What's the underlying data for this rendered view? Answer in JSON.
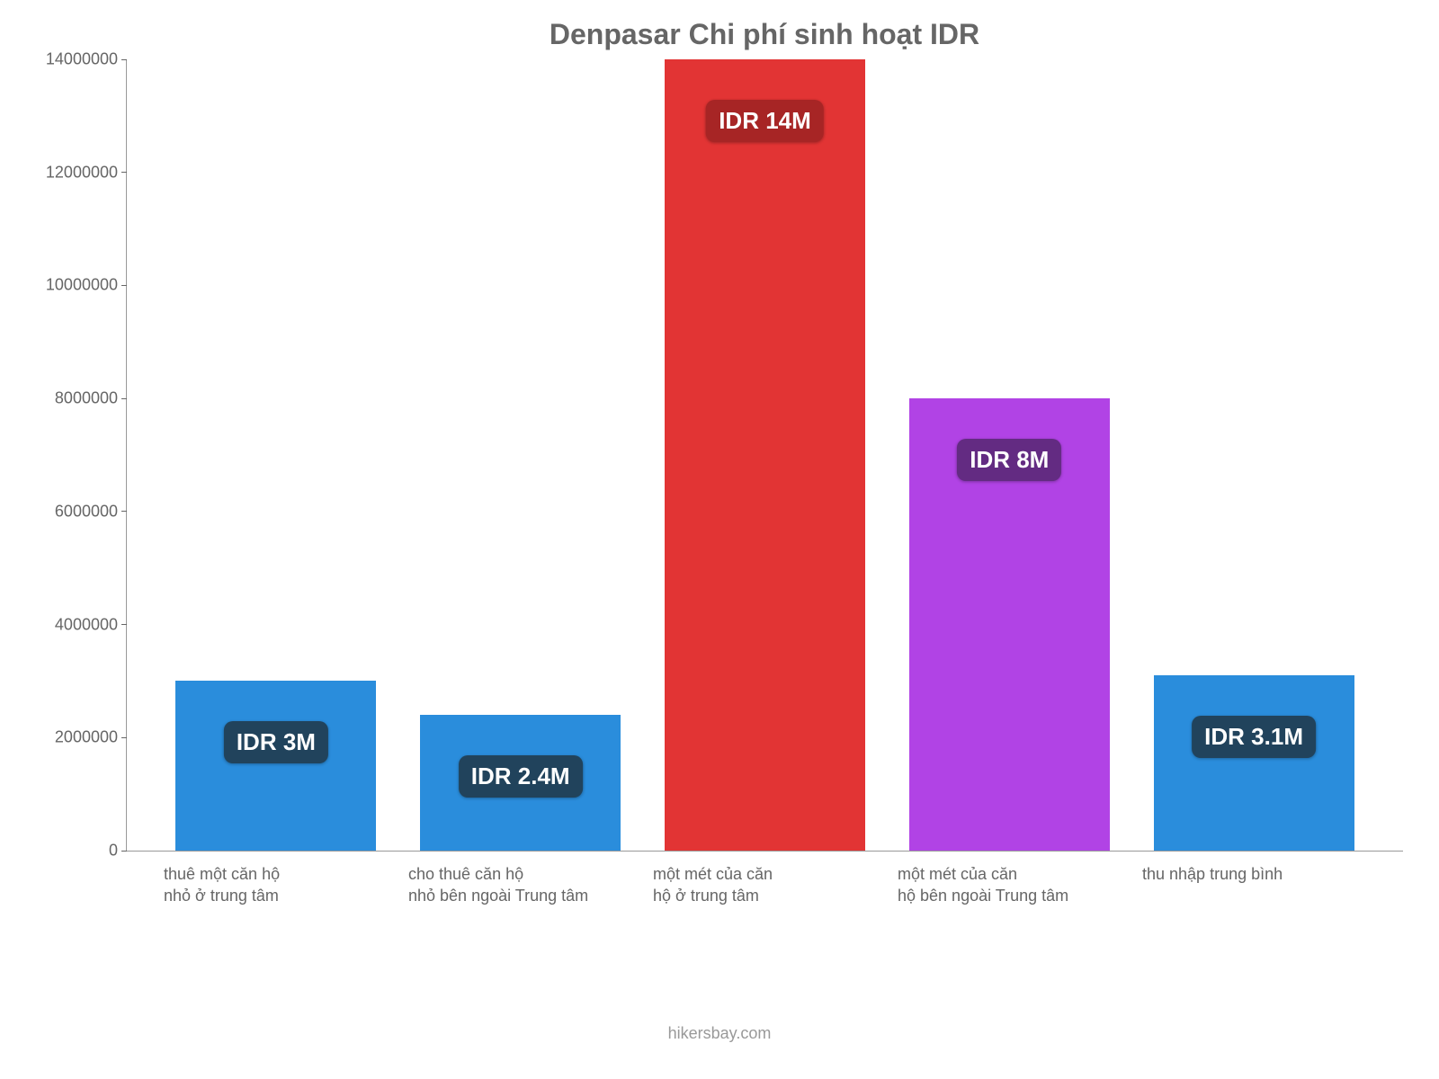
{
  "chart": {
    "type": "bar",
    "title": "Denpasar Chi phí sinh hoạt IDR",
    "title_fontsize": 32,
    "title_color": "#666666",
    "background_color": "#ffffff",
    "axis_color": "#999999",
    "label_color": "#666666",
    "label_fontsize": 18,
    "ylim": [
      0,
      14000000
    ],
    "ytick_step": 2000000,
    "yticks": [
      {
        "value": 0,
        "label": "0"
      },
      {
        "value": 2000000,
        "label": "2000000"
      },
      {
        "value": 4000000,
        "label": "4000000"
      },
      {
        "value": 6000000,
        "label": "6000000"
      },
      {
        "value": 8000000,
        "label": "8000000"
      },
      {
        "value": 10000000,
        "label": "10000000"
      },
      {
        "value": 12000000,
        "label": "12000000"
      },
      {
        "value": 14000000,
        "label": "14000000"
      }
    ],
    "bar_width": 0.82,
    "badge_fontsize": 26,
    "badge_text_color": "#ffffff",
    "bars": [
      {
        "value": 3000000,
        "value_label": "IDR 3M",
        "bar_color": "#2a8ddc",
        "badge_color": "#21435c",
        "x_label_lines": [
          "thuê một căn hộ",
          "nhỏ ở trung tâm"
        ]
      },
      {
        "value": 2400000,
        "value_label": "IDR 2.4M",
        "bar_color": "#2a8ddc",
        "badge_color": "#21435c",
        "x_label_lines": [
          "cho thuê căn hộ",
          "nhỏ bên ngoài Trung tâm"
        ]
      },
      {
        "value": 14000000,
        "value_label": "IDR 14M",
        "bar_color": "#e23434",
        "badge_color": "#a72525",
        "x_label_lines": [
          "một mét của căn",
          "hộ ở trung tâm"
        ]
      },
      {
        "value": 8000000,
        "value_label": "IDR 8M",
        "bar_color": "#b143e5",
        "badge_color": "#632b82",
        "x_label_lines": [
          "một mét của căn",
          "hộ bên ngoài Trung tâm"
        ]
      },
      {
        "value": 3100000,
        "value_label": "IDR 3.1M",
        "bar_color": "#2a8ddc",
        "badge_color": "#21435c",
        "x_label_lines": [
          "thu nhập trung bình"
        ]
      }
    ],
    "attribution": "hikersbay.com",
    "attribution_color": "#999999"
  }
}
